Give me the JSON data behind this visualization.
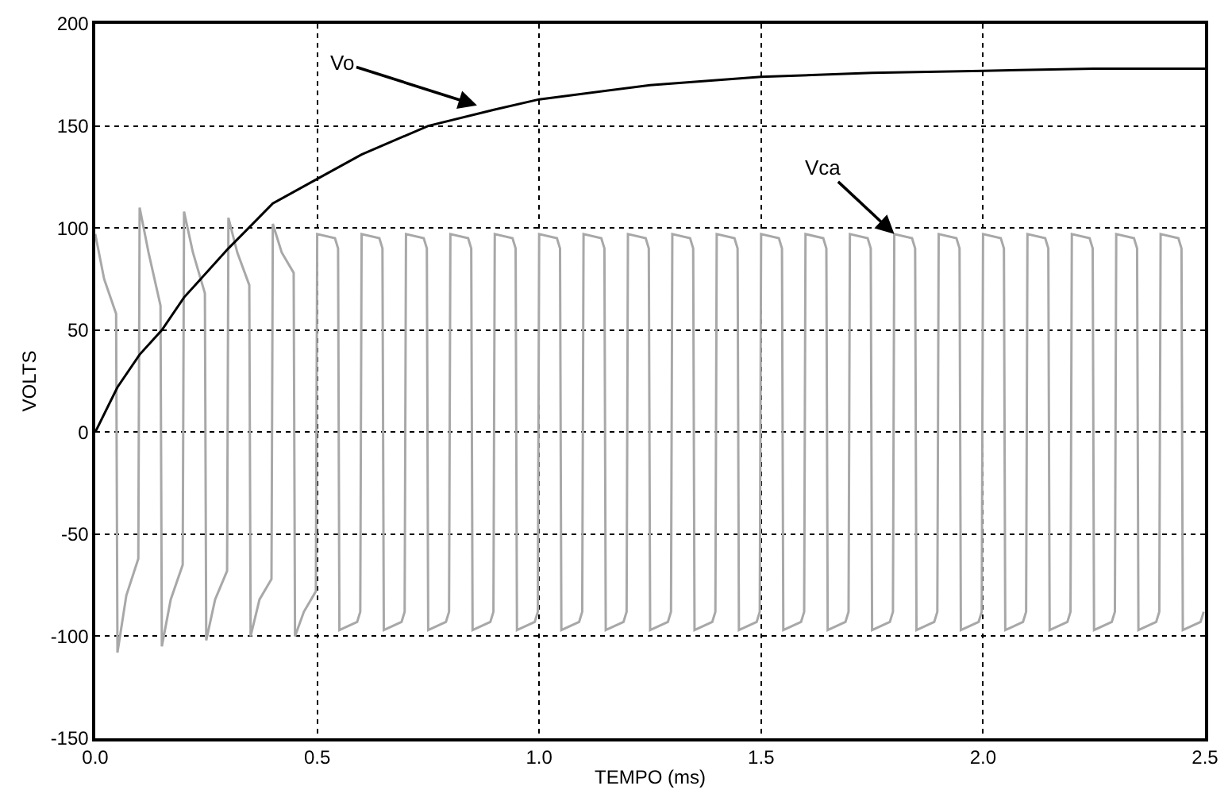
{
  "chart_data": {
    "type": "line",
    "xlabel": "TEMPO (ms)",
    "ylabel": "VOLTS",
    "xlim": [
      0,
      2.5
    ],
    "xticks": [
      {
        "value": 0,
        "label": "0.0"
      },
      0.5,
      {
        "value": 1,
        "label": "1.0"
      },
      1.5,
      {
        "value": 2,
        "label": "2.0"
      },
      2.5
    ],
    "ylim": [
      -150,
      200
    ],
    "yticks": [
      -150,
      -100,
      -50,
      0,
      50,
      100,
      150,
      200
    ],
    "grid": true,
    "marker": "none",
    "line_style": "solid",
    "series": [
      {
        "color": "#a8a8a8",
        "x": [
          0,
          0.02,
          0.047,
          0.05,
          0.07,
          0.097,
          0.1,
          0.12,
          0.147,
          0.15,
          0.17,
          0.197,
          0.2,
          0.22,
          0.247,
          0.25,
          0.27,
          0.297,
          0.3,
          0.32,
          0.347,
          0.35,
          0.37,
          0.397,
          0.4,
          0.42,
          0.447,
          0.45,
          0.47,
          0.497,
          0.5,
          0.54,
          0.547,
          0.55,
          0.59,
          0.597,
          0.6,
          0.64,
          0.647,
          0.65,
          0.69,
          0.697,
          0.7,
          0.74,
          0.747,
          0.75,
          0.79,
          0.797,
          0.8,
          0.84,
          0.847,
          0.85,
          0.89,
          0.897,
          0.9,
          0.94,
          0.947,
          0.95,
          0.99,
          0.997,
          1.0,
          1.04,
          1.047,
          1.05,
          1.09,
          1.097,
          1.1,
          1.14,
          1.147,
          1.15,
          1.19,
          1.197,
          1.2,
          1.24,
          1.247,
          1.25,
          1.29,
          1.297,
          1.3,
          1.34,
          1.347,
          1.35,
          1.39,
          1.397,
          1.4,
          1.44,
          1.447,
          1.45,
          1.49,
          1.497,
          1.5,
          1.54,
          1.547,
          1.55,
          1.59,
          1.597,
          1.6,
          1.64,
          1.647,
          1.65,
          1.69,
          1.697,
          1.7,
          1.74,
          1.747,
          1.75,
          1.79,
          1.797,
          1.8,
          1.84,
          1.847,
          1.85,
          1.89,
          1.897,
          1.9,
          1.94,
          1.947,
          1.95,
          1.99,
          1.997,
          2.0,
          2.04,
          2.047,
          2.05,
          2.09,
          2.097,
          2.1,
          2.14,
          2.147,
          2.15,
          2.19,
          2.197,
          2.2,
          2.24,
          2.247,
          2.25,
          2.29,
          2.297,
          2.3,
          2.34,
          2.347,
          2.35,
          2.39,
          2.397,
          2.4,
          2.44,
          2.447,
          2.45,
          2.49,
          2.497
        ],
        "values": [
          97,
          75,
          58,
          -108,
          -80,
          -62,
          110,
          88,
          62,
          -105,
          -82,
          -65,
          108,
          88,
          68,
          -102,
          -82,
          -68,
          105,
          88,
          72,
          -100,
          -82,
          -72,
          102,
          88,
          78,
          -100,
          -88,
          -78,
          97,
          95,
          90,
          -97,
          -93,
          -88,
          97,
          95,
          90,
          -97,
          -93,
          -88,
          97,
          95,
          90,
          -97,
          -93,
          -88,
          97,
          95,
          90,
          -97,
          -93,
          -88,
          97,
          95,
          90,
          -97,
          -93,
          -88,
          97,
          95,
          90,
          -97,
          -93,
          -88,
          97,
          95,
          90,
          -97,
          -93,
          -88,
          97,
          95,
          90,
          -97,
          -93,
          -88,
          97,
          95,
          90,
          -97,
          -93,
          -88,
          97,
          95,
          90,
          -97,
          -93,
          -88,
          97,
          95,
          90,
          -97,
          -93,
          -88,
          97,
          95,
          90,
          -97,
          -93,
          -88,
          97,
          95,
          90,
          -97,
          -93,
          -88,
          97,
          95,
          90,
          -97,
          -93,
          -88,
          97,
          95,
          90,
          -97,
          -93,
          -88,
          97,
          95,
          90,
          -97,
          -93,
          -88,
          97,
          95,
          90,
          -97,
          -93,
          -88,
          97,
          95,
          90,
          -97,
          -93,
          -88,
          97,
          95,
          90,
          -97,
          -93,
          -88,
          97,
          95,
          90,
          -97,
          -93,
          -88
        ]
      },
      {
        "color": "#000000",
        "x": [
          0,
          0.05,
          0.1,
          0.15,
          0.2,
          0.25,
          0.3,
          0.35,
          0.4,
          0.5,
          0.6,
          0.75,
          0.9,
          1.0,
          1.25,
          1.5,
          1.75,
          2.0,
          2.25,
          2.5
        ],
        "values": [
          0,
          22,
          38,
          50,
          66,
          78,
          90,
          101,
          112,
          124,
          136,
          150,
          158,
          163,
          170,
          174,
          176,
          177,
          178,
          178
        ]
      }
    ],
    "annotations": [
      {
        "text": "Vo",
        "x": 0.86,
        "y": 160
      },
      {
        "text": "Vca",
        "x": 1.8,
        "y": 97
      }
    ]
  }
}
